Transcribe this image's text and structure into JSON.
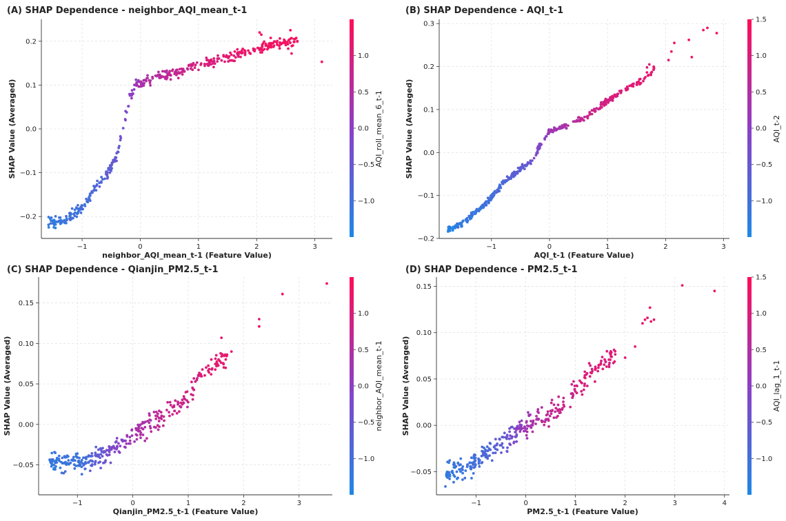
{
  "chart_data": [
    {
      "type": "scatter",
      "title": "(A) SHAP Dependence - neighbor_AQI_mean_t-1",
      "xlabel": "neighbor_AQI_mean_t-1 (Feature Value)",
      "ylabel": "SHAP Value (Averaged)",
      "xlim": [
        -1.7,
        3.3
      ],
      "ylim": [
        -0.25,
        0.25
      ],
      "xticks": [
        -1,
        0,
        1,
        2,
        3
      ],
      "yticks": [
        -0.2,
        -0.1,
        0.0,
        0.1,
        0.2
      ],
      "colorbar_label": "AQI_roll_mean_6_t-1",
      "cbar_range": [
        -1.5,
        1.5
      ],
      "cbar_ticks": [
        -1.0,
        -0.5,
        0.0,
        0.5,
        1.0
      ],
      "grid": true,
      "anchors": [
        [
          -1.55,
          -0.215
        ],
        [
          -1.3,
          -0.21
        ],
        [
          -1.0,
          -0.18
        ],
        [
          -0.8,
          -0.14
        ],
        [
          -0.55,
          -0.1
        ],
        [
          -0.4,
          -0.06
        ],
        [
          -0.3,
          0.0
        ],
        [
          -0.2,
          0.06
        ],
        [
          -0.1,
          0.1
        ],
        [
          0.2,
          0.115
        ],
        [
          0.6,
          0.13
        ],
        [
          1.0,
          0.145
        ],
        [
          1.4,
          0.16
        ],
        [
          1.8,
          0.175
        ],
        [
          2.2,
          0.19
        ],
        [
          2.6,
          0.2
        ]
      ],
      "color_anchors": [
        [
          -1.6,
          -1.25
        ],
        [
          -0.9,
          -0.95
        ],
        [
          -0.4,
          -0.55
        ],
        [
          0.0,
          0.35
        ],
        [
          0.8,
          0.85
        ],
        [
          2.0,
          1.3
        ],
        [
          3.2,
          1.45
        ]
      ],
      "n_points": 430,
      "noise": 0.012,
      "x_extent": [
        -1.6,
        2.7
      ],
      "extra_points": [
        [
          2.58,
          0.225
        ],
        [
          2.6,
          0.172
        ],
        [
          2.4,
          0.197
        ],
        [
          3.12,
          0.153
        ],
        [
          2.05,
          0.22
        ],
        [
          2.08,
          0.215
        ]
      ]
    },
    {
      "type": "scatter",
      "title": "(B) SHAP Dependence - AQI_t-1",
      "xlabel": "AQI_t-1 (Feature Value)",
      "ylabel": "SHAP Value (Averaged)",
      "xlim": [
        -1.9,
        3.1
      ],
      "ylim": [
        -0.2,
        0.31
      ],
      "xticks": [
        -1,
        0,
        1,
        2,
        3
      ],
      "yticks": [
        -0.2,
        -0.1,
        0.0,
        0.1,
        0.2,
        0.3
      ],
      "colorbar_label": "AQI_t-2",
      "cbar_range": [
        -1.5,
        1.5
      ],
      "cbar_ticks": [
        -1.0,
        -0.5,
        0.0,
        0.5,
        1.0,
        1.5
      ],
      "grid": true,
      "anchors": [
        [
          -1.7,
          -0.178
        ],
        [
          -1.5,
          -0.165
        ],
        [
          -1.2,
          -0.13
        ],
        [
          -1.0,
          -0.105
        ],
        [
          -0.75,
          -0.065
        ],
        [
          -0.5,
          -0.038
        ],
        [
          -0.3,
          -0.02
        ],
        [
          -0.15,
          0.02
        ],
        [
          0.0,
          0.05
        ],
        [
          0.3,
          0.062
        ],
        [
          0.6,
          0.08
        ],
        [
          1.0,
          0.12
        ],
        [
          1.3,
          0.145
        ],
        [
          1.6,
          0.17
        ],
        [
          1.8,
          0.195
        ]
      ],
      "color_anchors": [
        [
          -1.8,
          -1.4
        ],
        [
          -1.0,
          -1.0
        ],
        [
          -0.4,
          -0.55
        ],
        [
          0.0,
          0.2
        ],
        [
          0.8,
          0.85
        ],
        [
          1.6,
          1.15
        ],
        [
          3.0,
          1.4
        ]
      ],
      "n_points": 400,
      "noise": 0.007,
      "x_extent": [
        -1.75,
        1.8
      ],
      "extra_points": [
        [
          2.05,
          0.215
        ],
        [
          2.1,
          0.235
        ],
        [
          2.15,
          0.255
        ],
        [
          2.4,
          0.262
        ],
        [
          2.45,
          0.222
        ],
        [
          2.65,
          0.285
        ],
        [
          2.72,
          0.29
        ],
        [
          2.88,
          0.278
        ],
        [
          1.72,
          0.205
        ],
        [
          1.68,
          0.198
        ]
      ]
    },
    {
      "type": "scatter",
      "title": "(C) SHAP Dependence - Qianjin_PM2.5_t-1",
      "xlabel": "Qianjin_PM2.5_t-1 (Feature Value)",
      "ylabel": "SHAP Value (Averaged)",
      "xlim": [
        -1.7,
        3.6
      ],
      "ylim": [
        -0.087,
        0.182
      ],
      "xticks": [
        -1,
        0,
        1,
        2,
        3
      ],
      "yticks": [
        -0.05,
        0.0,
        0.05,
        0.1,
        0.15
      ],
      "colorbar_label": "neighbor_AQI_mean_t-1",
      "cbar_range": [
        -1.5,
        1.5
      ],
      "cbar_ticks": [
        -1.0,
        -0.5,
        0.0,
        0.5,
        1.0
      ],
      "grid": true,
      "anchors": [
        [
          -1.5,
          -0.048
        ],
        [
          -1.0,
          -0.046
        ],
        [
          -0.6,
          -0.04
        ],
        [
          -0.3,
          -0.028
        ],
        [
          0.0,
          -0.015
        ],
        [
          0.3,
          0.0
        ],
        [
          0.6,
          0.012
        ],
        [
          1.0,
          0.03
        ],
        [
          1.2,
          0.06
        ],
        [
          1.5,
          0.075
        ],
        [
          1.8,
          0.09
        ]
      ],
      "color_anchors": [
        [
          -1.5,
          -1.2
        ],
        [
          -0.9,
          -1.05
        ],
        [
          -0.5,
          -0.4
        ],
        [
          0.0,
          0.3
        ],
        [
          0.6,
          0.75
        ],
        [
          1.4,
          1.1
        ],
        [
          3.5,
          1.45
        ]
      ],
      "n_points": 330,
      "noise": 0.012,
      "x_extent": [
        -1.5,
        1.7
      ],
      "extra_points": [
        [
          2.28,
          0.13
        ],
        [
          2.28,
          0.121
        ],
        [
          2.7,
          0.161
        ],
        [
          3.5,
          0.174
        ],
        [
          1.78,
          0.09
        ],
        [
          1.6,
          0.107
        ]
      ]
    },
    {
      "type": "scatter",
      "title": "(D) SHAP Dependence - PM2.5_t-1",
      "xlabel": "PM2.5_t-1 (Feature Value)",
      "ylabel": "SHAP Value (Averaged)",
      "xlim": [
        -1.8,
        4.1
      ],
      "ylim": [
        -0.075,
        0.16
      ],
      "xticks": [
        -1,
        0,
        1,
        2,
        3,
        4
      ],
      "yticks": [
        -0.05,
        0.0,
        0.05,
        0.1,
        0.15
      ],
      "colorbar_label": "AQI_lag_1_t-1",
      "cbar_range": [
        -1.5,
        1.5
      ],
      "cbar_ticks": [
        -1.0,
        -0.5,
        0.0,
        0.5,
        1.0,
        1.5
      ],
      "grid": true,
      "anchors": [
        [
          -1.6,
          -0.05
        ],
        [
          -1.2,
          -0.045
        ],
        [
          -0.8,
          -0.03
        ],
        [
          -0.4,
          -0.015
        ],
        [
          0.0,
          0.0
        ],
        [
          0.4,
          0.01
        ],
        [
          0.8,
          0.022
        ],
        [
          1.0,
          0.04
        ],
        [
          1.2,
          0.052
        ],
        [
          1.5,
          0.065
        ],
        [
          1.8,
          0.075
        ]
      ],
      "color_anchors": [
        [
          -1.6,
          -1.2
        ],
        [
          -0.8,
          -0.9
        ],
        [
          -0.3,
          -0.4
        ],
        [
          0.0,
          0.3
        ],
        [
          0.6,
          0.75
        ],
        [
          1.4,
          1.05
        ],
        [
          3.8,
          1.45
        ]
      ],
      "n_points": 330,
      "noise": 0.011,
      "x_extent": [
        -1.6,
        1.8
      ],
      "extra_points": [
        [
          -1.62,
          -0.066
        ],
        [
          2.0,
          0.073
        ],
        [
          2.2,
          0.085
        ],
        [
          2.35,
          0.11
        ],
        [
          2.4,
          0.114
        ],
        [
          2.45,
          0.116
        ],
        [
          2.5,
          0.127
        ],
        [
          2.52,
          0.112
        ],
        [
          2.58,
          0.114
        ],
        [
          3.15,
          0.151
        ],
        [
          3.8,
          0.145
        ]
      ]
    }
  ]
}
